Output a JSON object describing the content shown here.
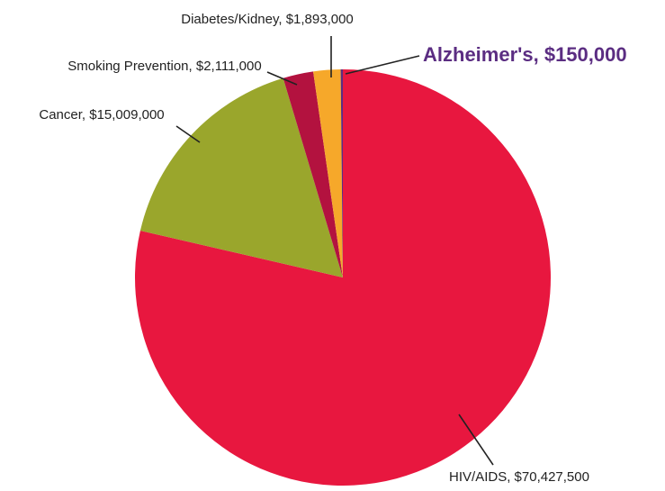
{
  "chart_data": {
    "type": "pie",
    "labels": [
      "HIV/AIDS",
      "Cancer",
      "Smoking Prevention",
      "Diabetes/Kidney",
      "Alzheimer's"
    ],
    "values": [
      70427500,
      15009000,
      2111000,
      1893000,
      150000
    ],
    "value_labels": [
      "HIV/AIDS, $70,427,500",
      "Cancer, $15,009,000",
      "Smoking Prevention, $2,111,000",
      "Diabetes/Kidney, $1,893,000",
      "Alzheimer's, $150,000"
    ],
    "colors": [
      "#e8173f",
      "#9aa62c",
      "#b3123f",
      "#f6a82a",
      "#5b2d82"
    ]
  }
}
